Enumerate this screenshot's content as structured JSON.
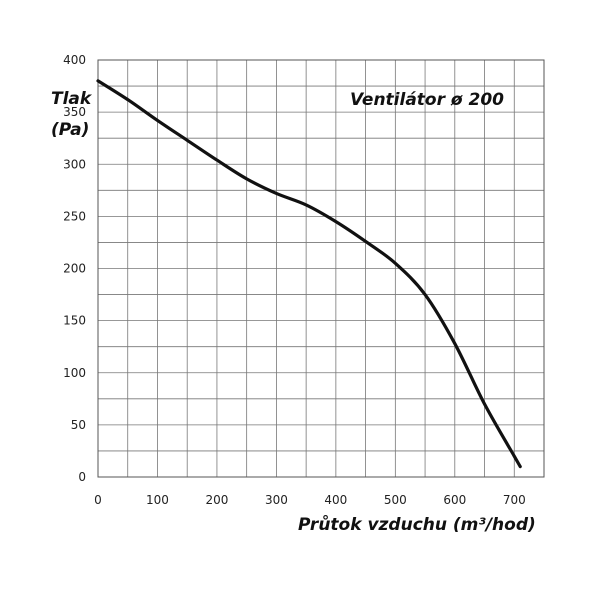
{
  "chart_data": {
    "type": "line",
    "title": "Ventilátor ø 200",
    "ylabel_lines": [
      "Tlak",
      "(Pa)"
    ],
    "xlabel": "Průtok vzduchu (m³/hod)",
    "xlim": [
      0,
      750
    ],
    "ylim": [
      0,
      400
    ],
    "x_ticks": [
      0,
      100,
      200,
      300,
      400,
      500,
      600,
      700
    ],
    "y_ticks": [
      0,
      50,
      100,
      150,
      200,
      250,
      300,
      350,
      400
    ],
    "x_ticks_text": [
      "0",
      "100",
      "200",
      "300",
      "400",
      "500",
      "600",
      "700"
    ],
    "y_ticks_text": [
      "0",
      "50",
      "100",
      "150",
      "200",
      "250",
      "300",
      "350",
      "400"
    ],
    "grid": true,
    "grid_x_step": 50,
    "grid_y_step": 25,
    "series": [
      {
        "color": "#111111",
        "x": [
          0,
          50,
          100,
          150,
          200,
          250,
          300,
          350,
          400,
          450,
          500,
          550,
          600,
          650,
          700,
          710
        ],
        "y": [
          380,
          362,
          342,
          323,
          304,
          286,
          272,
          261,
          245,
          226,
          205,
          175,
          128,
          70,
          20,
          10
        ]
      }
    ]
  }
}
